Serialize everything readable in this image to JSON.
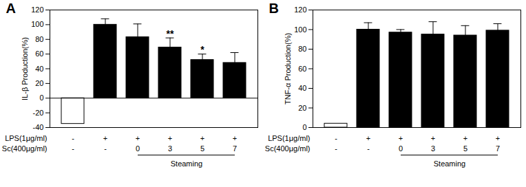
{
  "chart_data": [
    {
      "type": "bar",
      "title": "A",
      "y_label": "IL-β Production(%)",
      "categories": [
        null,
        null,
        null,
        null,
        null,
        null
      ],
      "values": [
        -35,
        100,
        83,
        69,
        52,
        48
      ],
      "errors": [
        0,
        8,
        18,
        13,
        8,
        14
      ],
      "colors": [
        "#ffffff",
        "#000000",
        "#000000",
        "#000000",
        "#000000",
        "#000000"
      ],
      "significance": [
        null,
        null,
        null,
        "**",
        "*",
        null
      ],
      "ylim": [
        -40,
        120
      ],
      "yticks": [
        -40,
        -20,
        0,
        20,
        40,
        60,
        80,
        100,
        120
      ],
      "x_rows": [
        {
          "label": "LPS(1μg/ml)",
          "values": [
            "-",
            "+",
            "+",
            "+",
            "+",
            "+"
          ]
        },
        {
          "label": "Sc(400μg/ml)",
          "values": [
            "-",
            "-",
            "0",
            "3",
            "5",
            "7"
          ]
        }
      ],
      "group_label": "Steaming",
      "group_span": [
        2,
        5
      ]
    },
    {
      "type": "bar",
      "title": "B",
      "y_label": "TNF-α Production(%)",
      "categories": [
        null,
        null,
        null,
        null,
        null,
        null
      ],
      "values": [
        4,
        100,
        97,
        95,
        94,
        99
      ],
      "errors": [
        0,
        7,
        3,
        13,
        10,
        7
      ],
      "colors": [
        "#ffffff",
        "#000000",
        "#000000",
        "#000000",
        "#000000",
        "#000000"
      ],
      "significance": [
        null,
        null,
        null,
        null,
        null,
        null
      ],
      "ylim": [
        0,
        120
      ],
      "yticks": [
        0,
        20,
        40,
        60,
        80,
        100,
        120
      ],
      "x_rows": [
        {
          "label": "LPS(1μg/ml)",
          "values": [
            "-",
            "+",
            "+",
            "+",
            "+",
            "+"
          ]
        },
        {
          "label": "Sc(400μg/ml)",
          "values": [
            "-",
            "-",
            "0",
            "3",
            "5",
            "7"
          ]
        }
      ],
      "group_label": "Steaming",
      "group_span": [
        2,
        5
      ]
    }
  ]
}
